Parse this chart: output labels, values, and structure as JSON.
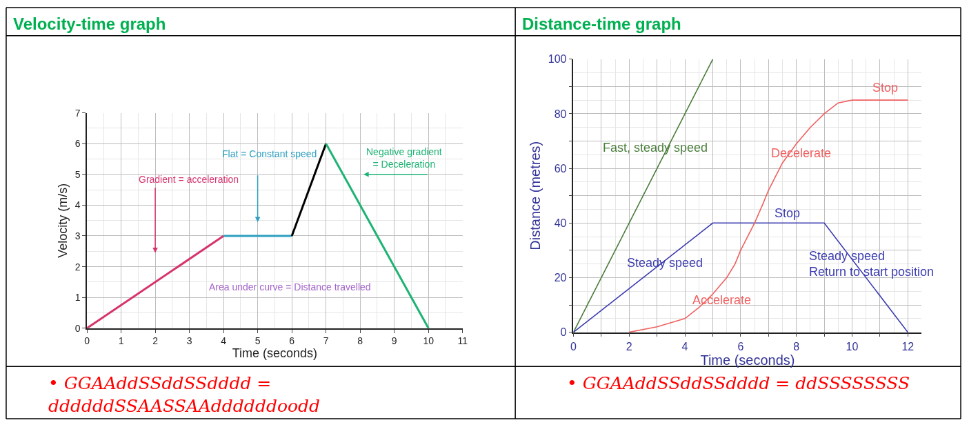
{
  "chart_data": [
    {
      "type": "line",
      "title": "Velocity-time graph",
      "xlabel": "Time (seconds)",
      "ylabel": "Velocity (m/s)",
      "xlim": [
        0,
        11
      ],
      "xticks": [
        0,
        1,
        2,
        3,
        4,
        5,
        6,
        7,
        8,
        9,
        10,
        11
      ],
      "ylim": [
        0,
        7
      ],
      "yticks": [
        0,
        1,
        2,
        3,
        4,
        5,
        6,
        7
      ],
      "grid": true,
      "marker": "none",
      "series": [
        {
          "color": "#d6336c",
          "x": [
            0,
            4
          ],
          "values": [
            0,
            3
          ]
        },
        {
          "color": "#2e9fc0",
          "x": [
            4,
            6
          ],
          "values": [
            3,
            3
          ]
        },
        {
          "color": "#000000",
          "x": [
            6,
            7
          ],
          "values": [
            3,
            6
          ]
        },
        {
          "color": "#1db373",
          "x": [
            7,
            10
          ],
          "values": [
            6,
            0
          ]
        }
      ],
      "annotations": [
        "Gradient = acceleration",
        "Flat = Constant speed",
        "Negative gradient\n= Deceleration",
        "Area under curve = Distance travelled",
        "• GGAAddSSddSSdddd = ddddddSSAASSAAddddddoodd"
      ]
    },
    {
      "type": "line",
      "title": "Distance-time graph",
      "xlabel": "Time (seconds)",
      "ylabel": "Distance (metres)",
      "xlim": [
        0,
        12.5
      ],
      "xticks": [
        0,
        {
          "value": 1,
          "label": null
        },
        2,
        {
          "value": 3,
          "label": null
        },
        4,
        {
          "value": 5,
          "label": null
        },
        6,
        {
          "value": 7,
          "label": null
        },
        8,
        {
          "value": 9,
          "label": null
        },
        10,
        {
          "value": 11,
          "label": null
        },
        12
      ],
      "ylim": [
        0,
        100
      ],
      "yticks": [
        0,
        {
          "value": 10,
          "label": null
        },
        20,
        {
          "value": 30,
          "label": null
        },
        40,
        {
          "value": 50,
          "label": null
        },
        60,
        {
          "value": 70,
          "label": null
        },
        80,
        {
          "value": 90,
          "label": null
        },
        100
      ],
      "grid": true,
      "marker": "none",
      "series": [
        {
          "color": "#4a7d3c",
          "x": [
            0,
            5
          ],
          "values": [
            0,
            100
          ]
        },
        {
          "color": "#3b3bb0",
          "x": [
            0,
            5,
            9,
            12
          ],
          "values": [
            0,
            40,
            40,
            0
          ]
        },
        {
          "color": "#f06060",
          "x": [
            2,
            3,
            4,
            4.5,
            5,
            5.5,
            5.8,
            6,
            6.3,
            6.5,
            6.8,
            7,
            7.3,
            7.5,
            8,
            8.5,
            9,
            9.5,
            10,
            12
          ],
          "values": [
            0,
            2,
            5,
            9,
            14,
            20,
            25,
            30,
            36,
            40,
            47,
            52,
            58,
            62,
            69,
            75,
            80,
            84,
            85,
            85
          ]
        }
      ],
      "annotations": [
        "Fast, steady speed",
        "Decelerate",
        "Stop",
        "Stop",
        "Steady speed",
        "Steady speed\nReturn to start position",
        "Accelerate",
        "• GGAAddSSddSSdddd = ddSSSSSSSS"
      ]
    }
  ]
}
